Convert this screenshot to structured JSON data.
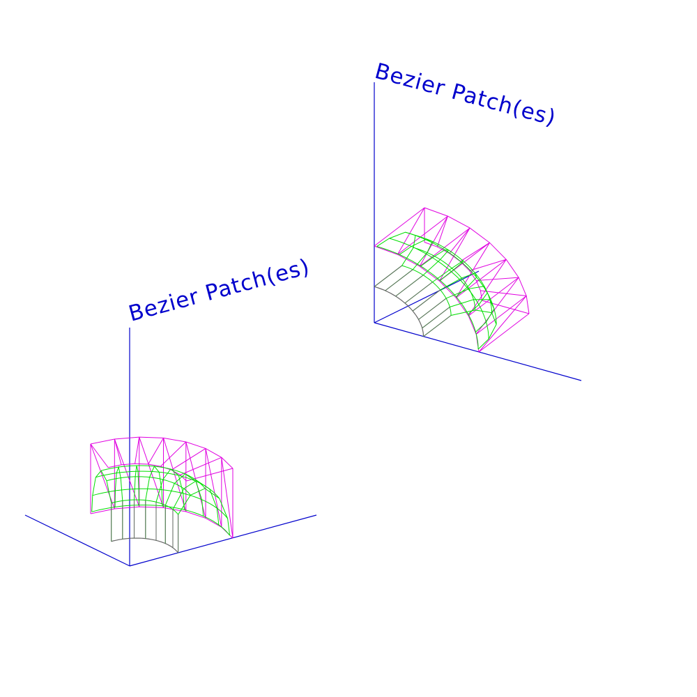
{
  "viewport": {
    "background": "#ffffff"
  },
  "colors": {
    "axis": "#0000cc",
    "label": "#0000cc",
    "control_net": "#e000e0",
    "surface": "#00dd00",
    "edge": "#666666"
  },
  "views": [
    {
      "label": "Bezier Patch(es)"
    },
    {
      "label": "Bezier Patch(es)"
    }
  ]
}
